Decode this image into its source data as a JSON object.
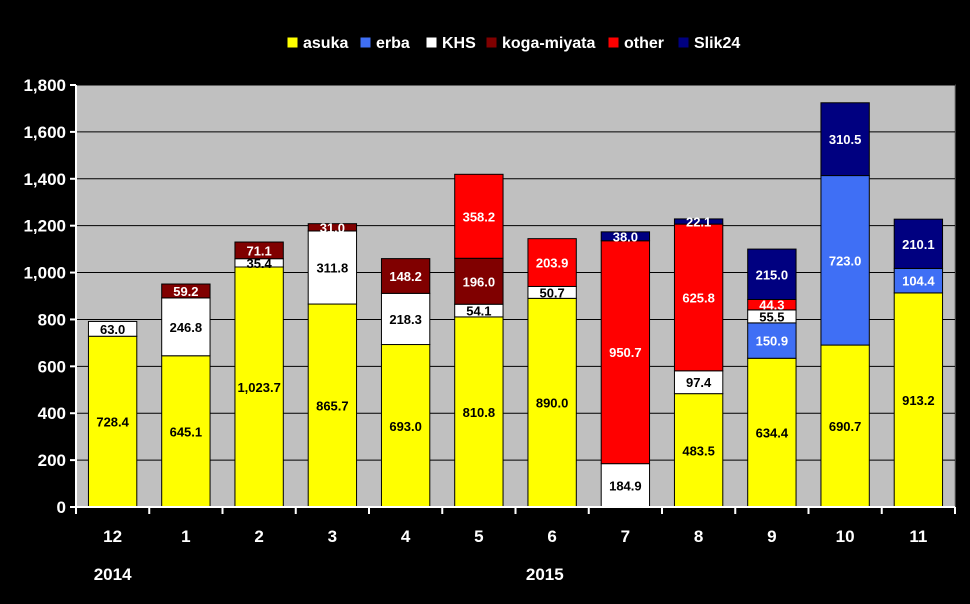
{
  "chart_data": {
    "type": "bar",
    "stacked": true,
    "categories": [
      "12",
      "1",
      "2",
      "3",
      "4",
      "5",
      "6",
      "7",
      "8",
      "9",
      "10",
      "11"
    ],
    "year_labels": [
      {
        "label": "2014",
        "category_index": 0
      },
      {
        "label": "2015",
        "category_index": 5.9
      }
    ],
    "ylim": [
      0,
      1800
    ],
    "yticks": [
      0,
      200,
      400,
      600,
      800,
      1000,
      1200,
      1400,
      1600,
      1800
    ],
    "ytick_labels": [
      "0",
      "200",
      "400",
      "600",
      "800",
      "1,000",
      "1,200",
      "1,400",
      "1,600",
      "1,800"
    ],
    "grid": true,
    "legend_position": "top",
    "series": [
      {
        "name": "asuka",
        "color": "#ffff00",
        "label_color": "#000000",
        "values": [
          728.4,
          645.1,
          1023.7,
          865.7,
          693.0,
          810.8,
          890.0,
          0,
          483.5,
          634.4,
          690.7,
          913.2
        ],
        "labels": [
          "728.4",
          "645.1",
          "1,023.7",
          "865.7",
          "693.0",
          "810.8",
          "890.0",
          "",
          "483.5",
          "634.4",
          "690.7",
          "913.2"
        ]
      },
      {
        "name": "erba",
        "color": "#3f6ff5",
        "label_color": "#ffffff",
        "values": [
          0,
          0,
          0,
          0,
          0,
          0,
          0,
          0,
          0,
          150.9,
          723.0,
          104.4
        ],
        "labels": [
          "",
          "",
          "",
          "",
          "",
          "",
          "",
          "",
          "",
          "150.9",
          "723.0",
          "104.4"
        ]
      },
      {
        "name": "KHS",
        "color": "#ffffff",
        "label_color": "#000000",
        "values": [
          63.0,
          246.8,
          35.4,
          311.8,
          218.3,
          54.1,
          50.7,
          184.9,
          97.4,
          55.5,
          0,
          0
        ],
        "labels": [
          "63.0",
          "246.8",
          "35.4",
          "311.8",
          "218.3",
          "54.1",
          "50.7",
          "184.9",
          "97.4",
          "55.5",
          "",
          ""
        ]
      },
      {
        "name": "koga-miyata",
        "color": "#800000",
        "label_color": "#ffffff",
        "values": [
          0,
          59.2,
          71.1,
          31.0,
          148.2,
          196.0,
          0,
          0,
          0,
          0,
          0,
          0
        ],
        "labels": [
          "",
          "59.2",
          "71.1",
          "31.0",
          "148.2",
          "196.0",
          "",
          "",
          "",
          "",
          "",
          ""
        ]
      },
      {
        "name": "other",
        "color": "#ff0000",
        "label_color": "#ffffff",
        "values": [
          0,
          0,
          0,
          0,
          0,
          358.2,
          203.9,
          950.7,
          625.8,
          44.3,
          0,
          0
        ],
        "labels": [
          "",
          "",
          "",
          "",
          "",
          "358.2",
          "203.9",
          "950.7",
          "625.8",
          "44.3",
          "",
          ""
        ]
      },
      {
        "name": "Slik24",
        "color": "#000080",
        "label_color": "#ffffff",
        "values": [
          0,
          0,
          0,
          0,
          0,
          0,
          0,
          38.0,
          22.1,
          215.0,
          310.5,
          210.1
        ],
        "labels": [
          "",
          "",
          "",
          "",
          "",
          "",
          "",
          "38.0",
          "22.1",
          "215.0",
          "310.5",
          "210.1"
        ]
      }
    ]
  }
}
